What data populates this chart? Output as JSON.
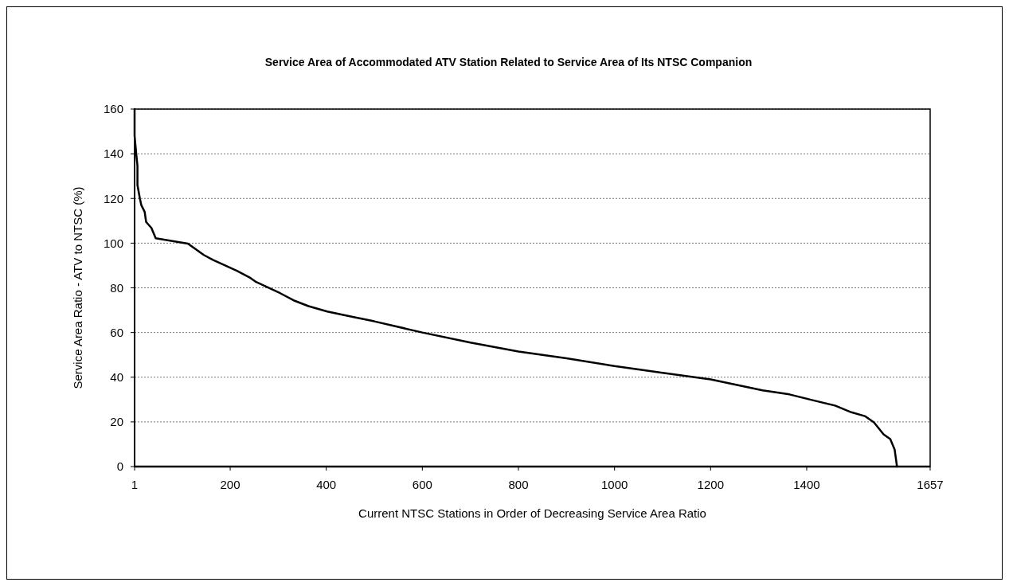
{
  "chart_data": {
    "type": "line",
    "title": "Service Area of Accommodated ATV Station Related to Service Area of Its NTSC Companion",
    "xlabel": "Current NTSC Stations in Order of Decreasing Service Area Ratio",
    "ylabel": "Service Area Ratio - ATV to NTSC (%)",
    "x": [
      1,
      1,
      4,
      7,
      7,
      12,
      15,
      22,
      25,
      36,
      45,
      112,
      145,
      164,
      214,
      240,
      254,
      304,
      332,
      363,
      402,
      455,
      500,
      600,
      700,
      800,
      900,
      1000,
      1100,
      1200,
      1308,
      1364,
      1409,
      1459,
      1493,
      1521,
      1540,
      1560,
      1574,
      1583,
      1588
    ],
    "series": [
      {
        "color": "#000000",
        "values": [
          160,
          148,
          141,
          134.6,
          126,
          120,
          117,
          114,
          109.5,
          106.8,
          102.2,
          99.8,
          94.7,
          92.5,
          87.6,
          84.7,
          82.6,
          77.6,
          74.4,
          71.8,
          69.4,
          67,
          65,
          60,
          55.5,
          51.5,
          48.5,
          45,
          42,
          39,
          34.1,
          32.3,
          29.9,
          27.3,
          24.3,
          22.6,
          19.8,
          14.4,
          12.3,
          7.7,
          0
        ]
      }
    ],
    "xlim": [
      1,
      1657
    ],
    "xticks": [
      1,
      200,
      400,
      600,
      800,
      1000,
      1200,
      1400,
      1657
    ],
    "ylim": [
      0,
      160
    ],
    "yticks": [
      0,
      20,
      40,
      60,
      80,
      100,
      120,
      140,
      160
    ],
    "grid": "y",
    "line_style": "solid"
  }
}
